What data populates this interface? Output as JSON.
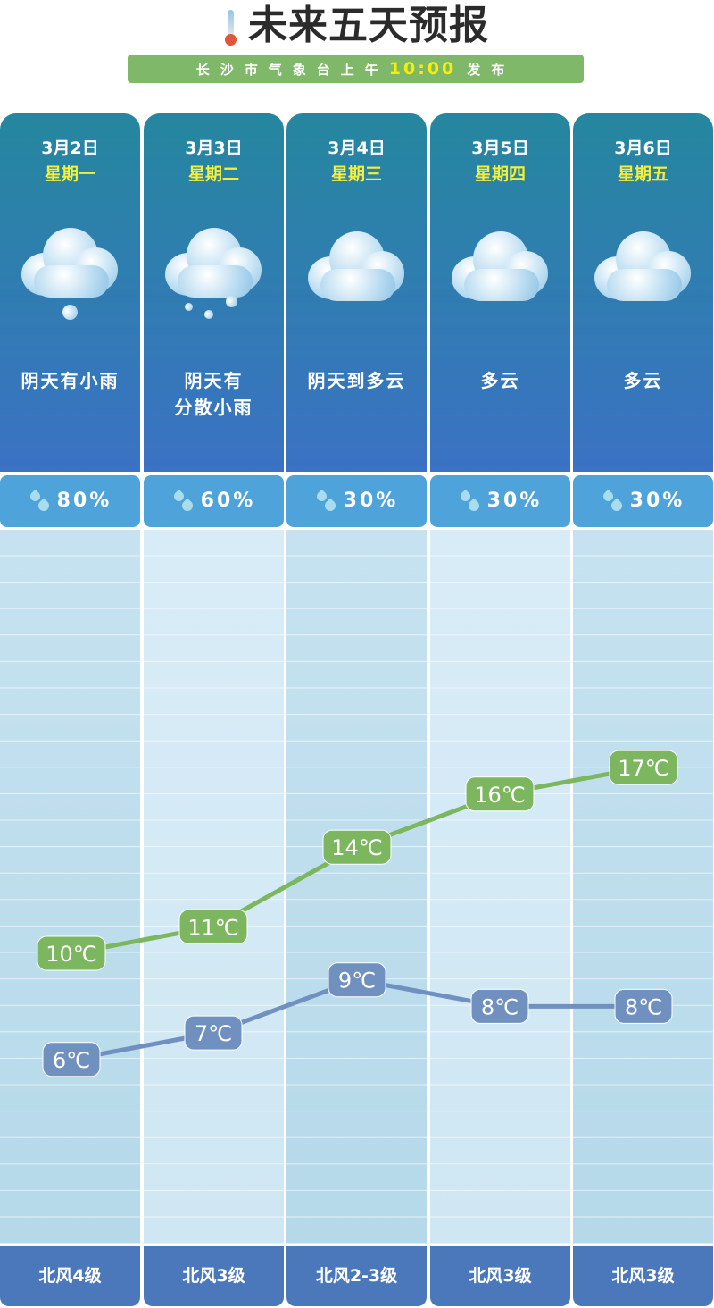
{
  "header": {
    "title": "未来五天预报",
    "subtitle_prefix": "长沙市气象台上午",
    "time": "10:00",
    "subtitle_suffix": "发布",
    "icon": "thermometer-icon"
  },
  "days": [
    {
      "date": "3月2日",
      "weekday": "星期一",
      "weather": [
        "阴天有小雨"
      ],
      "icon": "cloud-rain-icon",
      "precip": "80%",
      "wind": "北风4级"
    },
    {
      "date": "3月3日",
      "weekday": "星期二",
      "weather": [
        "阴天有",
        "分散小雨"
      ],
      "icon": "cloud-scattered-rain-icon",
      "precip": "60%",
      "wind": "北风3级"
    },
    {
      "date": "3月4日",
      "weekday": "星期三",
      "weather": [
        "阴天到多云"
      ],
      "icon": "cloud-icon",
      "precip": "30%",
      "wind": "北风2-3级"
    },
    {
      "date": "3月5日",
      "weekday": "星期四",
      "weather": [
        "多云"
      ],
      "icon": "cloud-icon",
      "precip": "30%",
      "wind": "北风3级"
    },
    {
      "date": "3月6日",
      "weekday": "星期五",
      "weather": [
        "多云"
      ],
      "icon": "cloud-icon",
      "precip": "30%",
      "wind": "北风3级"
    }
  ],
  "colors": {
    "high": "#7cb65e",
    "low": "#7090c0",
    "card_top": "#25879f",
    "card_bottom": "#3b72c4",
    "precip": "#4ea4da",
    "wind": "#4b78bb",
    "accent": "#f5ef3a"
  },
  "chart_data": {
    "type": "line",
    "categories": [
      "3月2日",
      "3月3日",
      "3月4日",
      "3月5日",
      "3月6日"
    ],
    "unit": "℃",
    "series": [
      {
        "values": [
          10,
          11,
          14,
          16,
          17
        ]
      },
      {
        "values": [
          6,
          7,
          9,
          8,
          8
        ]
      }
    ],
    "grid": true
  }
}
